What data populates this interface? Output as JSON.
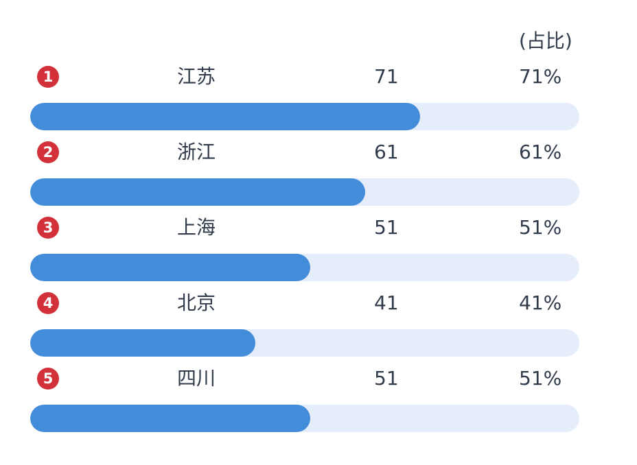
{
  "header": {
    "ratio_label": "(占比)"
  },
  "colors": {
    "badge": "#d2313a",
    "bar_fill": "#438cd9",
    "bar_track": "#e5edfb",
    "text": "#2f3a4a"
  },
  "chart_data": {
    "type": "bar",
    "orientation": "horizontal",
    "max": 100,
    "categories": [
      "江苏",
      "浙江",
      "上海",
      "北京",
      "四川"
    ],
    "values": [
      71,
      61,
      51,
      41,
      51
    ],
    "percent_labels": [
      "71%",
      "61%",
      "51%",
      "41%",
      "51%"
    ],
    "ranks": [
      "1",
      "2",
      "3",
      "4",
      "5"
    ]
  }
}
